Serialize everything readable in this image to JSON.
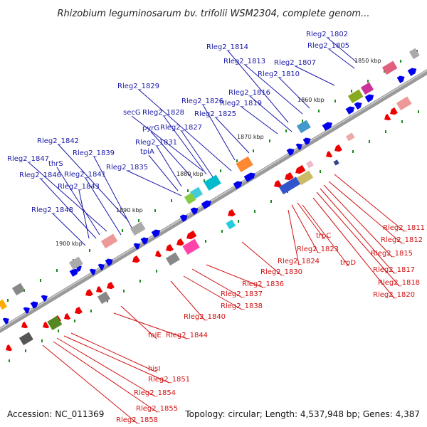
{
  "title": "Rhizobium leguminosarum bv. trifolii WSM2304, complete genom...",
  "footer": {
    "accession": "Accession: NC_011369",
    "summary": "Topology: circular; Length: 4,537,948 bp; Genes: 4,387"
  },
  "colors": {
    "plus": "#0000ee",
    "minus": "#ee0000",
    "backbone": "#888888",
    "tick": "#1a8a1a"
  },
  "kbp_marks": [
    "1850 kbp",
    "1860 kbp",
    "1870 kbp",
    "1880 kbp",
    "1890 kbp",
    "1900 kbp"
  ],
  "blue_labels": [
    "Rleg2_1802",
    "Rleg2_1805",
    "Rleg2_1807",
    "Rleg2_1810",
    "Rleg2_1813",
    "Rleg2_1814",
    "Rleg2_1816",
    "Rleg2_1819",
    "Rleg2_1825",
    "Rleg2_1826",
    "Rleg2_1829",
    "secG",
    "Rleg2_1828",
    "pyrG",
    "Rleg2_1827",
    "Rleg2_1831",
    "tpiA",
    "Rleg2_1835",
    "Rleg2_1842",
    "Rleg2_1839",
    "Rleg2_1847",
    "thrS",
    "Rleg2_1846",
    "Rleg2_1841",
    "Rleg2_1843",
    "Rleg2_1848"
  ],
  "red_labels": [
    "Rleg2_1811",
    "Rleg2_1812",
    "Rleg2_1815",
    "Rleg2_1817",
    "Rleg2_1818",
    "Rleg2_1820",
    "trpC",
    "Rleg2_1823",
    "trpD",
    "Rleg2_1824",
    "Rleg2_1830",
    "Rleg2_1836",
    "Rleg2_1837",
    "Rleg2_1838",
    "Rleg2_1840",
    "folE",
    "Rleg2_1844",
    "hisI",
    "Rleg2_1851",
    "Rleg2_1854",
    "Rleg2_1855",
    "Rleg2_1858"
  ]
}
